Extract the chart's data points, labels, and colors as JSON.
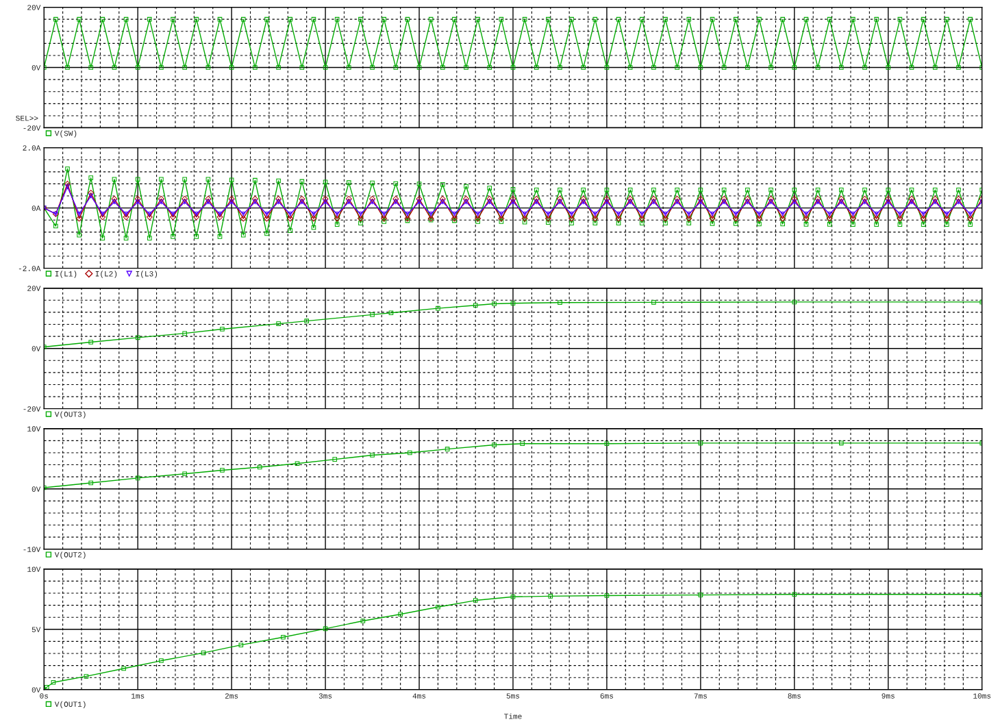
{
  "chart_data": [
    {
      "type": "line",
      "tick_labels": "y",
      "grid": true,
      "legend": "bottom",
      "annotations": [
        "SEL>>"
      ],
      "x": [
        0,
        0.125,
        0.25,
        0.375,
        0.5,
        0.625,
        0.75,
        0.875,
        1,
        1.125,
        1.25,
        1.375,
        1.5,
        1.625,
        1.75,
        1.875,
        2,
        2.125,
        2.25,
        2.375,
        2.5,
        2.625,
        2.75,
        2.875,
        3,
        3.125,
        3.25,
        3.375,
        3.5,
        3.625,
        3.75,
        3.875,
        4,
        4.125,
        4.25,
        4.375,
        4.5,
        4.625,
        4.75,
        4.875,
        5,
        5.125,
        5.25,
        5.375,
        5.5,
        5.625,
        5.75,
        5.875,
        6,
        6.125,
        6.25,
        6.375,
        6.5,
        6.625,
        6.75,
        6.875,
        7,
        7.125,
        7.25,
        7.375,
        7.5,
        7.625,
        7.75,
        7.875,
        8,
        8.125,
        8.25,
        8.375,
        8.5,
        8.625,
        8.75,
        8.875,
        9,
        9.125,
        9.25,
        9.375,
        9.5,
        9.625,
        9.75,
        9.875,
        10
      ],
      "xlim": [
        0,
        10
      ],
      "xticks": [
        {
          "value": 0,
          "label": null
        },
        {
          "value": 0.2,
          "label": null
        },
        {
          "value": 0.4,
          "label": null
        },
        {
          "value": 0.6,
          "label": null
        },
        {
          "value": 0.8,
          "label": null
        },
        {
          "value": 1,
          "label": null
        },
        {
          "value": 1.2,
          "label": null
        },
        {
          "value": 1.4,
          "label": null
        },
        {
          "value": 1.6,
          "label": null
        },
        {
          "value": 1.8,
          "label": null
        },
        {
          "value": 2,
          "label": null
        },
        {
          "value": 2.2,
          "label": null
        },
        {
          "value": 2.4,
          "label": null
        },
        {
          "value": 2.6,
          "label": null
        },
        {
          "value": 2.8,
          "label": null
        },
        {
          "value": 3,
          "label": null
        },
        {
          "value": 3.2,
          "label": null
        },
        {
          "value": 3.4,
          "label": null
        },
        {
          "value": 3.6,
          "label": null
        },
        {
          "value": 3.8,
          "label": null
        },
        {
          "value": 4,
          "label": null
        },
        {
          "value": 4.2,
          "label": null
        },
        {
          "value": 4.4,
          "label": null
        },
        {
          "value": 4.6,
          "label": null
        },
        {
          "value": 4.8,
          "label": null
        },
        {
          "value": 5,
          "label": null
        },
        {
          "value": 5.2,
          "label": null
        },
        {
          "value": 5.4,
          "label": null
        },
        {
          "value": 5.6,
          "label": null
        },
        {
          "value": 5.8,
          "label": null
        },
        {
          "value": 6,
          "label": null
        },
        {
          "value": 6.2,
          "label": null
        },
        {
          "value": 6.4,
          "label": null
        },
        {
          "value": 6.6,
          "label": null
        },
        {
          "value": 6.8,
          "label": null
        },
        {
          "value": 7,
          "label": null
        },
        {
          "value": 7.2,
          "label": null
        },
        {
          "value": 7.4,
          "label": null
        },
        {
          "value": 7.6,
          "label": null
        },
        {
          "value": 7.8,
          "label": null
        },
        {
          "value": 8,
          "label": null
        },
        {
          "value": 8.2,
          "label": null
        },
        {
          "value": 8.4,
          "label": null
        },
        {
          "value": 8.6,
          "label": null
        },
        {
          "value": 8.8,
          "label": null
        },
        {
          "value": 9,
          "label": null
        },
        {
          "value": 9.2,
          "label": null
        },
        {
          "value": 9.4,
          "label": null
        },
        {
          "value": 9.6,
          "label": null
        },
        {
          "value": 9.8,
          "label": null
        },
        {
          "value": 10,
          "label": null
        }
      ],
      "ylim": [
        -20,
        20
      ],
      "yticks": [
        {
          "value": -20,
          "label": "-20V"
        },
        {
          "value": -16,
          "label": null
        },
        {
          "value": -12,
          "label": null
        },
        {
          "value": -8,
          "label": null
        },
        {
          "value": -4,
          "label": null
        },
        {
          "value": 0,
          "label": "0V"
        },
        {
          "value": 4,
          "label": null
        },
        {
          "value": 8,
          "label": null
        },
        {
          "value": 12,
          "label": null
        },
        {
          "value": 16,
          "label": null
        },
        {
          "value": 20,
          "label": "20V"
        }
      ],
      "series": [
        {
          "name": "V(SW)",
          "color": "#00aa00",
          "marker": "square",
          "values": [
            0,
            16,
            0,
            16,
            0,
            16,
            0,
            16,
            0,
            16,
            0,
            16,
            0,
            16,
            0,
            16,
            0,
            16,
            0,
            16,
            0,
            16,
            0,
            16,
            0,
            16,
            0,
            16,
            0,
            16,
            0,
            16,
            0,
            16,
            0,
            16,
            0,
            16,
            0,
            16,
            0,
            16,
            0,
            16,
            0,
            16,
            0,
            16,
            0,
            16,
            0,
            16,
            0,
            16,
            0,
            16,
            0,
            16,
            0,
            16,
            0,
            16,
            0,
            16,
            0,
            16,
            0,
            16,
            0,
            16,
            0,
            16,
            0,
            16,
            0,
            16,
            0,
            16,
            0,
            16,
            0
          ]
        }
      ]
    },
    {
      "type": "line",
      "tick_labels": "y",
      "grid": true,
      "legend": "bottom",
      "x": [
        0,
        0.125,
        0.25,
        0.375,
        0.5,
        0.625,
        0.75,
        0.875,
        1,
        1.125,
        1.25,
        1.375,
        1.5,
        1.625,
        1.75,
        1.875,
        2,
        2.125,
        2.25,
        2.375,
        2.5,
        2.625,
        2.75,
        2.875,
        3,
        3.125,
        3.25,
        3.375,
        3.5,
        3.625,
        3.75,
        3.875,
        4,
        4.125,
        4.25,
        4.375,
        4.5,
        4.625,
        4.75,
        4.875,
        5,
        5.125,
        5.25,
        5.375,
        5.5,
        5.625,
        5.75,
        5.875,
        6,
        6.125,
        6.25,
        6.375,
        6.5,
        6.625,
        6.75,
        6.875,
        7,
        7.125,
        7.25,
        7.375,
        7.5,
        7.625,
        7.75,
        7.875,
        8,
        8.125,
        8.25,
        8.375,
        8.5,
        8.625,
        8.75,
        8.875,
        9,
        9.125,
        9.25,
        9.375,
        9.5,
        9.625,
        9.75,
        9.875,
        10
      ],
      "xlim": [
        0,
        10
      ],
      "xticks": [
        {
          "value": 0,
          "label": null
        },
        {
          "value": 0.2,
          "label": null
        },
        {
          "value": 0.4,
          "label": null
        },
        {
          "value": 0.6,
          "label": null
        },
        {
          "value": 0.8,
          "label": null
        },
        {
          "value": 1,
          "label": null
        },
        {
          "value": 1.2,
          "label": null
        },
        {
          "value": 1.4,
          "label": null
        },
        {
          "value": 1.6,
          "label": null
        },
        {
          "value": 1.8,
          "label": null
        },
        {
          "value": 2,
          "label": null
        },
        {
          "value": 2.2,
          "label": null
        },
        {
          "value": 2.4,
          "label": null
        },
        {
          "value": 2.6,
          "label": null
        },
        {
          "value": 2.8,
          "label": null
        },
        {
          "value": 3,
          "label": null
        },
        {
          "value": 3.2,
          "label": null
        },
        {
          "value": 3.4,
          "label": null
        },
        {
          "value": 3.6,
          "label": null
        },
        {
          "value": 3.8,
          "label": null
        },
        {
          "value": 4,
          "label": null
        },
        {
          "value": 4.2,
          "label": null
        },
        {
          "value": 4.4,
          "label": null
        },
        {
          "value": 4.6,
          "label": null
        },
        {
          "value": 4.8,
          "label": null
        },
        {
          "value": 5,
          "label": null
        },
        {
          "value": 5.2,
          "label": null
        },
        {
          "value": 5.4,
          "label": null
        },
        {
          "value": 5.6,
          "label": null
        },
        {
          "value": 5.8,
          "label": null
        },
        {
          "value": 6,
          "label": null
        },
        {
          "value": 6.2,
          "label": null
        },
        {
          "value": 6.4,
          "label": null
        },
        {
          "value": 6.6,
          "label": null
        },
        {
          "value": 6.8,
          "label": null
        },
        {
          "value": 7,
          "label": null
        },
        {
          "value": 7.2,
          "label": null
        },
        {
          "value": 7.4,
          "label": null
        },
        {
          "value": 7.6,
          "label": null
        },
        {
          "value": 7.8,
          "label": null
        },
        {
          "value": 8,
          "label": null
        },
        {
          "value": 8.2,
          "label": null
        },
        {
          "value": 8.4,
          "label": null
        },
        {
          "value": 8.6,
          "label": null
        },
        {
          "value": 8.8,
          "label": null
        },
        {
          "value": 9,
          "label": null
        },
        {
          "value": 9.2,
          "label": null
        },
        {
          "value": 9.4,
          "label": null
        },
        {
          "value": 9.6,
          "label": null
        },
        {
          "value": 9.8,
          "label": null
        },
        {
          "value": 10,
          "label": null
        }
      ],
      "ylim": [
        -2,
        2
      ],
      "yticks": [
        {
          "value": -2,
          "label": "-2.0A"
        },
        {
          "value": -1.6,
          "label": null
        },
        {
          "value": -1.2,
          "label": null
        },
        {
          "value": -0.8,
          "label": null
        },
        {
          "value": -0.4,
          "label": null
        },
        {
          "value": 0,
          "label": "0A"
        },
        {
          "value": 0.4,
          "label": null
        },
        {
          "value": 0.8,
          "label": null
        },
        {
          "value": 1.2,
          "label": null
        },
        {
          "value": 1.6,
          "label": null
        },
        {
          "value": 2,
          "label": "2.0A"
        }
      ],
      "series": [
        {
          "name": "I(L1)",
          "color": "#00aa00",
          "marker": "square",
          "values": [
            0,
            -0.6,
            1.3,
            -0.9,
            1.0,
            -1.0,
            0.95,
            -1.0,
            0.95,
            -1.0,
            0.95,
            -0.95,
            0.95,
            -0.95,
            0.95,
            -0.95,
            0.93,
            -0.9,
            0.92,
            -0.85,
            0.9,
            -0.75,
            0.88,
            -0.65,
            0.86,
            -0.55,
            0.84,
            -0.5,
            0.83,
            -0.45,
            0.81,
            -0.42,
            0.8,
            -0.4,
            0.78,
            -0.42,
            0.72,
            -0.45,
            0.66,
            -0.45,
            0.62,
            -0.47,
            0.6,
            -0.48,
            0.6,
            -0.5,
            0.6,
            -0.5,
            0.6,
            -0.5,
            0.6,
            -0.5,
            0.6,
            -0.5,
            0.6,
            -0.5,
            0.6,
            -0.52,
            0.6,
            -0.52,
            0.6,
            -0.53,
            0.6,
            -0.53,
            0.6,
            -0.54,
            0.6,
            -0.54,
            0.6,
            -0.55,
            0.6,
            -0.55,
            0.6,
            -0.55,
            0.6,
            -0.55,
            0.6,
            -0.55,
            0.6,
            -0.55,
            0.6
          ]
        },
        {
          "name": "I(L2)",
          "color": "#aa0000",
          "marker": "diamond",
          "values": [
            0,
            -0.2,
            0.8,
            -0.35,
            0.5,
            -0.3,
            0.3,
            -0.3,
            0.3,
            -0.3,
            0.3,
            -0.3,
            0.3,
            -0.3,
            0.3,
            -0.3,
            0.3,
            -0.35,
            0.3,
            -0.35,
            0.3,
            -0.35,
            0.3,
            -0.35,
            0.3,
            -0.35,
            0.3,
            -0.35,
            0.3,
            -0.35,
            0.3,
            -0.35,
            0.3,
            -0.35,
            0.3,
            -0.35,
            0.3,
            -0.35,
            0.3,
            -0.35,
            0.3,
            -0.35,
            0.3,
            -0.35,
            0.3,
            -0.35,
            0.3,
            -0.35,
            0.3,
            -0.35,
            0.3,
            -0.35,
            0.3,
            -0.35,
            0.3,
            -0.35,
            0.3,
            -0.35,
            0.3,
            -0.35,
            0.3,
            -0.35,
            0.3,
            -0.35,
            0.3,
            -0.35,
            0.3,
            -0.35,
            0.3,
            -0.35,
            0.3,
            -0.35,
            0.3,
            -0.35,
            0.3,
            -0.35,
            0.3,
            -0.35,
            0.3,
            -0.35,
            0.3
          ]
        },
        {
          "name": "I(L3)",
          "color": "#5500ff",
          "marker": "triangle",
          "values": [
            0,
            -0.2,
            0.7,
            -0.2,
            0.4,
            -0.2,
            0.2,
            -0.2,
            0.2,
            -0.2,
            0.2,
            -0.2,
            0.2,
            -0.2,
            0.2,
            -0.2,
            0.2,
            -0.2,
            0.2,
            -0.2,
            0.2,
            -0.2,
            0.2,
            -0.2,
            0.2,
            -0.2,
            0.2,
            -0.2,
            0.2,
            -0.2,
            0.2,
            -0.2,
            0.2,
            -0.2,
            0.2,
            -0.2,
            0.2,
            -0.2,
            0.2,
            -0.2,
            0.2,
            -0.2,
            0.2,
            -0.2,
            0.2,
            -0.2,
            0.2,
            -0.2,
            0.2,
            -0.2,
            0.2,
            -0.2,
            0.2,
            -0.2,
            0.2,
            -0.2,
            0.2,
            -0.2,
            0.2,
            -0.2,
            0.2,
            -0.2,
            0.2,
            -0.2,
            0.2,
            -0.2,
            0.2,
            -0.2,
            0.2,
            -0.2,
            0.2,
            -0.2,
            0.2,
            -0.2,
            0.2,
            -0.2,
            0.2,
            -0.2,
            0.2,
            -0.2,
            0.2
          ]
        }
      ]
    },
    {
      "type": "line",
      "tick_labels": "y",
      "grid": true,
      "legend": "bottom",
      "x": [
        0,
        0.5,
        1,
        1.5,
        1.9,
        2.5,
        2.8,
        3.5,
        3.7,
        4.2,
        4.6,
        4.8,
        5,
        5.5,
        6.5,
        8,
        10
      ],
      "xlim": [
        0,
        10
      ],
      "xticks": [
        {
          "value": 0,
          "label": null
        },
        {
          "value": 0.2,
          "label": null
        },
        {
          "value": 0.4,
          "label": null
        },
        {
          "value": 0.6,
          "label": null
        },
        {
          "value": 0.8,
          "label": null
        },
        {
          "value": 1,
          "label": null
        },
        {
          "value": 1.2,
          "label": null
        },
        {
          "value": 1.4,
          "label": null
        },
        {
          "value": 1.6,
          "label": null
        },
        {
          "value": 1.8,
          "label": null
        },
        {
          "value": 2,
          "label": null
        },
        {
          "value": 2.2,
          "label": null
        },
        {
          "value": 2.4,
          "label": null
        },
        {
          "value": 2.6,
          "label": null
        },
        {
          "value": 2.8,
          "label": null
        },
        {
          "value": 3,
          "label": null
        },
        {
          "value": 3.2,
          "label": null
        },
        {
          "value": 3.4,
          "label": null
        },
        {
          "value": 3.6,
          "label": null
        },
        {
          "value": 3.8,
          "label": null
        },
        {
          "value": 4,
          "label": null
        },
        {
          "value": 4.2,
          "label": null
        },
        {
          "value": 4.4,
          "label": null
        },
        {
          "value": 4.6,
          "label": null
        },
        {
          "value": 4.8,
          "label": null
        },
        {
          "value": 5,
          "label": null
        },
        {
          "value": 5.2,
          "label": null
        },
        {
          "value": 5.4,
          "label": null
        },
        {
          "value": 5.6,
          "label": null
        },
        {
          "value": 5.8,
          "label": null
        },
        {
          "value": 6,
          "label": null
        },
        {
          "value": 6.2,
          "label": null
        },
        {
          "value": 6.4,
          "label": null
        },
        {
          "value": 6.6,
          "label": null
        },
        {
          "value": 6.8,
          "label": null
        },
        {
          "value": 7,
          "label": null
        },
        {
          "value": 7.2,
          "label": null
        },
        {
          "value": 7.4,
          "label": null
        },
        {
          "value": 7.6,
          "label": null
        },
        {
          "value": 7.8,
          "label": null
        },
        {
          "value": 8,
          "label": null
        },
        {
          "value": 8.2,
          "label": null
        },
        {
          "value": 8.4,
          "label": null
        },
        {
          "value": 8.6,
          "label": null
        },
        {
          "value": 8.8,
          "label": null
        },
        {
          "value": 9,
          "label": null
        },
        {
          "value": 9.2,
          "label": null
        },
        {
          "value": 9.4,
          "label": null
        },
        {
          "value": 9.6,
          "label": null
        },
        {
          "value": 9.8,
          "label": null
        },
        {
          "value": 10,
          "label": null
        }
      ],
      "ylim": [
        -20,
        20
      ],
      "yticks": [
        {
          "value": -20,
          "label": "-20V"
        },
        {
          "value": -16,
          "label": null
        },
        {
          "value": -12,
          "label": null
        },
        {
          "value": -8,
          "label": null
        },
        {
          "value": -4,
          "label": null
        },
        {
          "value": 0,
          "label": "0V"
        },
        {
          "value": 4,
          "label": null
        },
        {
          "value": 8,
          "label": null
        },
        {
          "value": 12,
          "label": null
        },
        {
          "value": 16,
          "label": null
        },
        {
          "value": 20,
          "label": "20V"
        }
      ],
      "series": [
        {
          "name": "V(OUT3)",
          "color": "#00aa00",
          "marker": "square",
          "values": [
            0.5,
            2.1,
            3.6,
            5.0,
            6.4,
            8.2,
            9.1,
            11.2,
            11.8,
            13.3,
            14.3,
            14.8,
            15.0,
            15.2,
            15.3,
            15.4,
            15.4
          ]
        }
      ]
    },
    {
      "type": "line",
      "tick_labels": "y",
      "grid": true,
      "legend": "bottom",
      "x": [
        0,
        0.5,
        1,
        1.5,
        1.9,
        2.3,
        2.7,
        3.1,
        3.5,
        3.9,
        4.3,
        4.8,
        5.1,
        6,
        7,
        8.5,
        10
      ],
      "xlim": [
        0,
        10
      ],
      "xticks": [
        {
          "value": 0,
          "label": null
        },
        {
          "value": 0.2,
          "label": null
        },
        {
          "value": 0.4,
          "label": null
        },
        {
          "value": 0.6,
          "label": null
        },
        {
          "value": 0.8,
          "label": null
        },
        {
          "value": 1,
          "label": null
        },
        {
          "value": 1.2,
          "label": null
        },
        {
          "value": 1.4,
          "label": null
        },
        {
          "value": 1.6,
          "label": null
        },
        {
          "value": 1.8,
          "label": null
        },
        {
          "value": 2,
          "label": null
        },
        {
          "value": 2.2,
          "label": null
        },
        {
          "value": 2.4,
          "label": null
        },
        {
          "value": 2.6,
          "label": null
        },
        {
          "value": 2.8,
          "label": null
        },
        {
          "value": 3,
          "label": null
        },
        {
          "value": 3.2,
          "label": null
        },
        {
          "value": 3.4,
          "label": null
        },
        {
          "value": 3.6,
          "label": null
        },
        {
          "value": 3.8,
          "label": null
        },
        {
          "value": 4,
          "label": null
        },
        {
          "value": 4.2,
          "label": null
        },
        {
          "value": 4.4,
          "label": null
        },
        {
          "value": 4.6,
          "label": null
        },
        {
          "value": 4.8,
          "label": null
        },
        {
          "value": 5,
          "label": null
        },
        {
          "value": 5.2,
          "label": null
        },
        {
          "value": 5.4,
          "label": null
        },
        {
          "value": 5.6,
          "label": null
        },
        {
          "value": 5.8,
          "label": null
        },
        {
          "value": 6,
          "label": null
        },
        {
          "value": 6.2,
          "label": null
        },
        {
          "value": 6.4,
          "label": null
        },
        {
          "value": 6.6,
          "label": null
        },
        {
          "value": 6.8,
          "label": null
        },
        {
          "value": 7,
          "label": null
        },
        {
          "value": 7.2,
          "label": null
        },
        {
          "value": 7.4,
          "label": null
        },
        {
          "value": 7.6,
          "label": null
        },
        {
          "value": 7.8,
          "label": null
        },
        {
          "value": 8,
          "label": null
        },
        {
          "value": 8.2,
          "label": null
        },
        {
          "value": 8.4,
          "label": null
        },
        {
          "value": 8.6,
          "label": null
        },
        {
          "value": 8.8,
          "label": null
        },
        {
          "value": 9,
          "label": null
        },
        {
          "value": 9.2,
          "label": null
        },
        {
          "value": 9.4,
          "label": null
        },
        {
          "value": 9.6,
          "label": null
        },
        {
          "value": 9.8,
          "label": null
        },
        {
          "value": 10,
          "label": null
        }
      ],
      "ylim": [
        -10,
        10
      ],
      "yticks": [
        {
          "value": -10,
          "label": "-10V"
        },
        {
          "value": -8,
          "label": null
        },
        {
          "value": -6,
          "label": null
        },
        {
          "value": -4,
          "label": null
        },
        {
          "value": -2,
          "label": null
        },
        {
          "value": 0,
          "label": "0V"
        },
        {
          "value": 2,
          "label": null
        },
        {
          "value": 4,
          "label": null
        },
        {
          "value": 6,
          "label": null
        },
        {
          "value": 8,
          "label": null
        },
        {
          "value": 10,
          "label": "10V"
        }
      ],
      "series": [
        {
          "name": "V(OUT2)",
          "color": "#00aa00",
          "marker": "square",
          "values": [
            0.2,
            1.0,
            1.8,
            2.5,
            3.1,
            3.6,
            4.2,
            4.9,
            5.6,
            6.0,
            6.6,
            7.3,
            7.5,
            7.5,
            7.6,
            7.6,
            7.6
          ]
        }
      ]
    },
    {
      "type": "line",
      "grid": true,
      "legend": "bottom",
      "xlabel": "Time",
      "x": [
        0,
        0.03,
        0.1,
        0.45,
        0.85,
        1.25,
        1.7,
        2.1,
        2.55,
        3,
        3.4,
        3.8,
        4.2,
        4.6,
        5,
        5.4,
        6,
        7,
        8,
        10
      ],
      "xlim": [
        0,
        10
      ],
      "xticks": [
        {
          "value": 0,
          "label": "0s"
        },
        {
          "value": 0.2,
          "label": null
        },
        {
          "value": 0.4,
          "label": null
        },
        {
          "value": 0.6,
          "label": null
        },
        {
          "value": 0.8,
          "label": null
        },
        {
          "value": 1,
          "label": "1ms"
        },
        {
          "value": 1.2,
          "label": null
        },
        {
          "value": 1.4,
          "label": null
        },
        {
          "value": 1.6,
          "label": null
        },
        {
          "value": 1.8,
          "label": null
        },
        {
          "value": 2,
          "label": "2ms"
        },
        {
          "value": 2.2,
          "label": null
        },
        {
          "value": 2.4,
          "label": null
        },
        {
          "value": 2.6,
          "label": null
        },
        {
          "value": 2.8,
          "label": null
        },
        {
          "value": 3,
          "label": "3ms"
        },
        {
          "value": 3.2,
          "label": null
        },
        {
          "value": 3.4,
          "label": null
        },
        {
          "value": 3.6,
          "label": null
        },
        {
          "value": 3.8,
          "label": null
        },
        {
          "value": 4,
          "label": "4ms"
        },
        {
          "value": 4.2,
          "label": null
        },
        {
          "value": 4.4,
          "label": null
        },
        {
          "value": 4.6,
          "label": null
        },
        {
          "value": 4.8,
          "label": null
        },
        {
          "value": 5,
          "label": "5ms"
        },
        {
          "value": 5.2,
          "label": null
        },
        {
          "value": 5.4,
          "label": null
        },
        {
          "value": 5.6,
          "label": null
        },
        {
          "value": 5.8,
          "label": null
        },
        {
          "value": 6,
          "label": "6ms"
        },
        {
          "value": 6.2,
          "label": null
        },
        {
          "value": 6.4,
          "label": null
        },
        {
          "value": 6.6,
          "label": null
        },
        {
          "value": 6.8,
          "label": null
        },
        {
          "value": 7,
          "label": "7ms"
        },
        {
          "value": 7.2,
          "label": null
        },
        {
          "value": 7.4,
          "label": null
        },
        {
          "value": 7.6,
          "label": null
        },
        {
          "value": 7.8,
          "label": null
        },
        {
          "value": 8,
          "label": "8ms"
        },
        {
          "value": 8.2,
          "label": null
        },
        {
          "value": 8.4,
          "label": null
        },
        {
          "value": 8.6,
          "label": null
        },
        {
          "value": 8.8,
          "label": null
        },
        {
          "value": 9,
          "label": "9ms"
        },
        {
          "value": 9.2,
          "label": null
        },
        {
          "value": 9.4,
          "label": null
        },
        {
          "value": 9.6,
          "label": null
        },
        {
          "value": 9.8,
          "label": null
        },
        {
          "value": 10,
          "label": "10ms"
        }
      ],
      "ylim": [
        0,
        10
      ],
      "yticks": [
        {
          "value": 0,
          "label": "0V"
        },
        {
          "value": 1,
          "label": null
        },
        {
          "value": 2,
          "label": null
        },
        {
          "value": 3,
          "label": null
        },
        {
          "value": 4,
          "label": null
        },
        {
          "value": 5,
          "label": "5V"
        },
        {
          "value": 6,
          "label": null
        },
        {
          "value": 7,
          "label": null
        },
        {
          "value": 8,
          "label": null
        },
        {
          "value": 9,
          "label": null
        },
        {
          "value": 10,
          "label": "10V"
        }
      ],
      "series": [
        {
          "name": "V(OUT1)",
          "color": "#00aa00",
          "marker": "square",
          "values": [
            0,
            0.2,
            0.6,
            1.1,
            1.75,
            2.4,
            3.05,
            3.7,
            4.35,
            5.05,
            5.7,
            6.25,
            6.85,
            7.4,
            7.7,
            7.75,
            7.8,
            7.85,
            7.9,
            7.9
          ]
        }
      ]
    }
  ]
}
